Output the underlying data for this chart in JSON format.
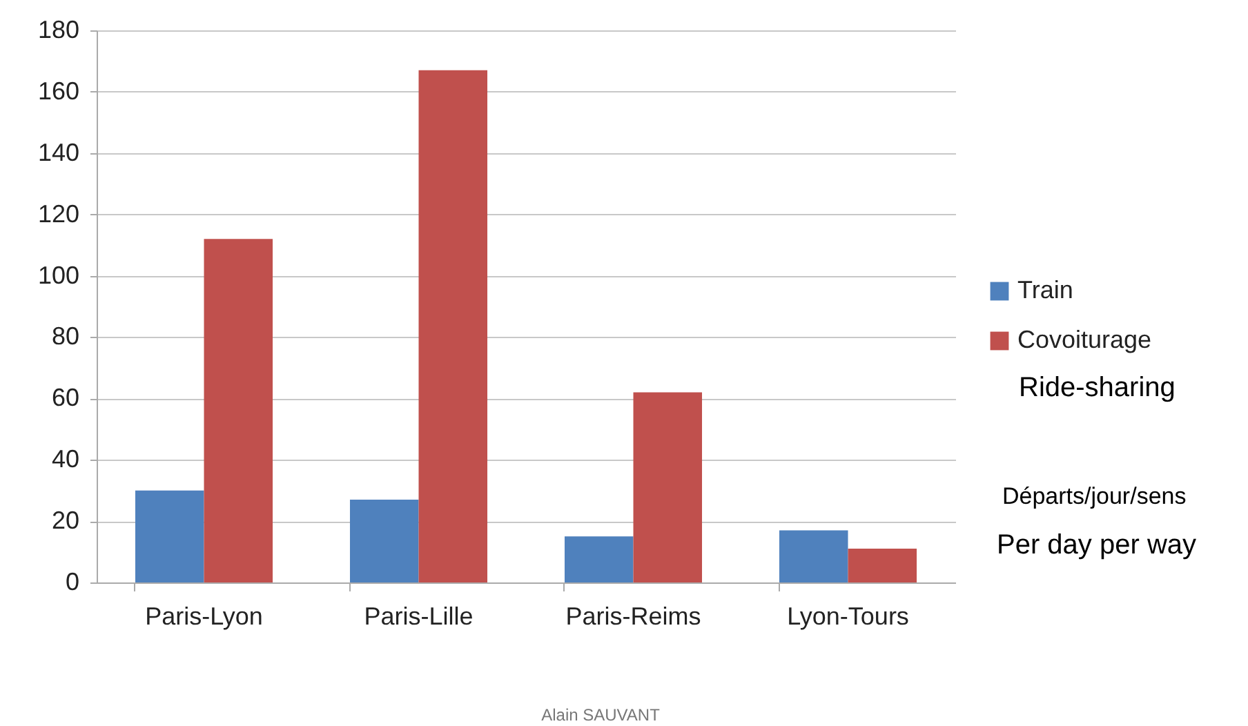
{
  "chart_data": {
    "type": "bar",
    "categories": [
      "Paris-Lyon",
      "Paris-Lille",
      "Paris-Reims",
      "Lyon-Tours"
    ],
    "series": [
      {
        "name": "Train",
        "color": "#4f81bd",
        "values": [
          30,
          27,
          15,
          17
        ]
      },
      {
        "name": "Covoiturage",
        "color": "#c0504d",
        "values": [
          112,
          167,
          62,
          11
        ]
      }
    ],
    "ylim": [
      0,
      180
    ],
    "yticks": [
      0,
      20,
      40,
      60,
      80,
      100,
      120,
      140,
      160,
      180
    ],
    "grid": "y",
    "legend": "right",
    "annotations": [
      "Ride-sharing",
      "Départs/jour/sens",
      "Per day per way",
      "Alain SAUVANT"
    ]
  }
}
